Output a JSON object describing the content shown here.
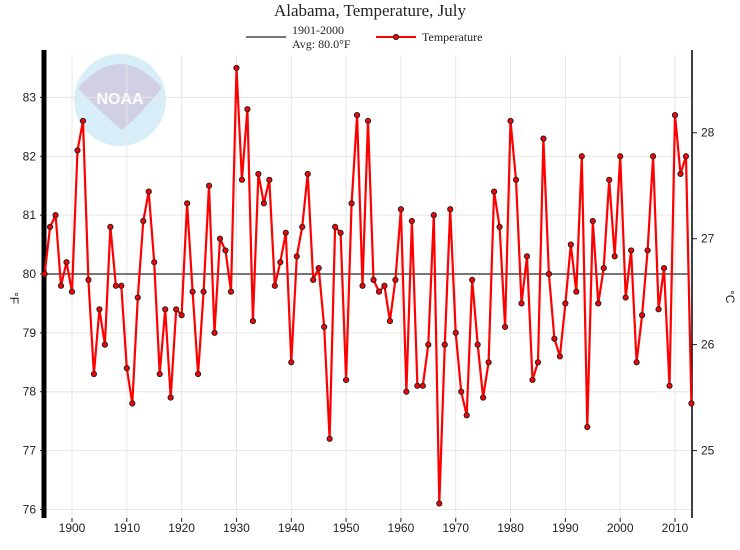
{
  "chart_data": {
    "type": "line",
    "title": "Alabama, Temperature, July",
    "ylabel": "°F",
    "ylabel_right": "°C",
    "ylim": [
      75.9,
      83.8
    ],
    "xlim": [
      1895,
      2013
    ],
    "yticks": [
      76,
      77,
      78,
      79,
      80,
      81,
      82,
      83
    ],
    "yticks_right": [
      25,
      26,
      27,
      28
    ],
    "xticks": [
      1900,
      1910,
      1920,
      1930,
      1940,
      1950,
      1960,
      1970,
      1980,
      1990,
      2000,
      2010
    ],
    "grid": true,
    "legend_position": "top",
    "legend": {
      "average_label_line1": "1901-2000",
      "average_label_line2": "Avg: 80.0°F",
      "series_label": "Temperature"
    },
    "average": 80.0,
    "colors": {
      "series": "#ff0000",
      "average": "#777777",
      "marker_edge": "#222222"
    },
    "x_start": 1895,
    "series": [
      {
        "name": "Temperature",
        "values": [
          80.0,
          80.8,
          81.0,
          79.8,
          80.2,
          79.7,
          82.1,
          82.6,
          79.9,
          78.3,
          79.4,
          78.8,
          80.8,
          79.8,
          79.8,
          78.4,
          77.8,
          79.6,
          80.9,
          81.4,
          80.2,
          78.3,
          79.4,
          77.9,
          79.4,
          79.3,
          81.2,
          79.7,
          78.3,
          79.7,
          81.5,
          79.0,
          80.6,
          80.4,
          79.7,
          83.5,
          81.6,
          82.8,
          79.2,
          81.7,
          81.2,
          81.6,
          79.8,
          80.2,
          80.7,
          78.5,
          80.3,
          80.8,
          81.7,
          79.9,
          80.1,
          79.1,
          77.2,
          80.8,
          80.7,
          78.2,
          81.2,
          82.7,
          79.8,
          82.6,
          79.9,
          79.7,
          79.8,
          79.2,
          79.9,
          81.1,
          78.0,
          80.9,
          78.1,
          78.1,
          78.8,
          81.0,
          76.1,
          78.8,
          81.1,
          79.0,
          78.0,
          77.6,
          79.9,
          78.8,
          77.9,
          78.5,
          81.4,
          80.8,
          79.1,
          82.6,
          81.6,
          79.5,
          80.3,
          78.2,
          78.5,
          82.3,
          80.0,
          78.9,
          78.6,
          79.5,
          80.5,
          79.7,
          82.0,
          77.4,
          80.9,
          79.5,
          80.1,
          81.6,
          80.3,
          82.0,
          79.6,
          80.4,
          78.5,
          79.3,
          80.4,
          82.0,
          79.4,
          80.1,
          78.1,
          82.7,
          81.7,
          82.0,
          77.8
        ]
      }
    ],
    "watermark": "NOAA NATIONAL OCEANIC AND ATMOSPHERIC ADMINISTRATION U.S. DEPARTMENT OF COMMERCE"
  }
}
